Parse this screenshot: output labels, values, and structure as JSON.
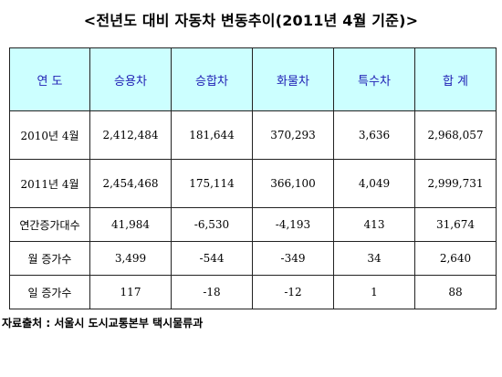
{
  "title": "<전년도 대비 자동차 변동추이(2011년 4월 기준)>",
  "table": {
    "headers": [
      "연 도",
      "승용차",
      "승합차",
      "화물차",
      "특수차",
      "합 계"
    ],
    "rows": [
      [
        "2010년 4월",
        "2,412,484",
        "181,644",
        "370,293",
        "3,636",
        "2,968,057"
      ],
      [
        "2011년 4월",
        "2,454,468",
        "175,114",
        "366,100",
        "4,049",
        "2,999,731"
      ],
      [
        "연간증가대수",
        "41,984",
        "-6,530",
        "-4,193",
        "413",
        "31,674"
      ],
      [
        "월 증가수",
        "3,499",
        "-544",
        "-349",
        "34",
        "2,640"
      ],
      [
        "일 증가수",
        "117",
        "-18",
        "-12",
        "1",
        "88"
      ]
    ]
  },
  "source": "자료출처 : 서울시 도시교통본부 택시물류과"
}
